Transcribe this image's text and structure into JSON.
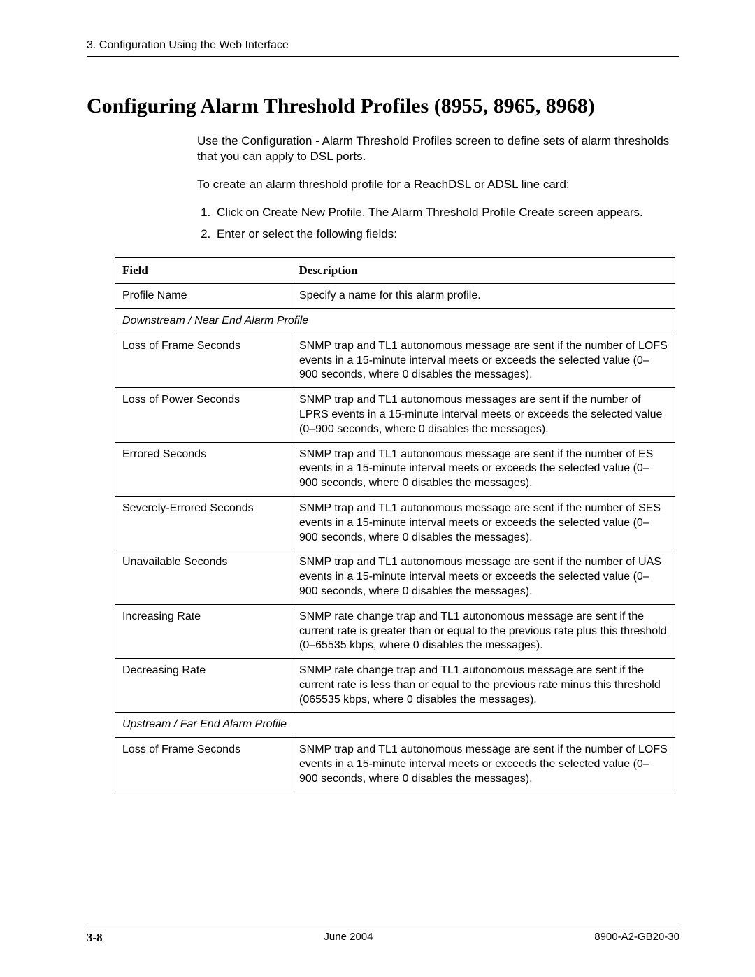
{
  "header": {
    "chapter": "3. Configuration Using the Web Interface"
  },
  "title": "Configuring Alarm Threshold Profiles (8955, 8965, 8968)",
  "intro": {
    "p1": "Use the Configuration - Alarm Threshold Profiles screen to define sets of alarm thresholds that you can apply to DSL ports.",
    "p2": "To create an alarm threshold profile for a ReachDSL or ADSL line card:",
    "step1": "Click on Create New Profile. The Alarm Threshold Profile Create screen appears.",
    "step2": "Enter or select the following fields:"
  },
  "table": {
    "col_field": "Field",
    "col_desc": "Description",
    "rows": [
      {
        "type": "row",
        "field": "Profile Name",
        "desc": "Specify a name for this alarm profile."
      },
      {
        "type": "section",
        "label": "Downstream / Near End Alarm Profile"
      },
      {
        "type": "row",
        "field": "Loss of Frame Seconds",
        "desc": "SNMP trap and TL1 autonomous message are sent if the number of LOFS events in a 15-minute interval meets or exceeds the selected value (0–900 seconds, where 0 disables the messages)."
      },
      {
        "type": "row",
        "field": "Loss of Power Seconds",
        "desc": "SNMP trap and TL1 autonomous messages are sent if the number of LPRS events in a 15-minute interval meets or exceeds the selected value (0–900 seconds, where 0 disables the messages)."
      },
      {
        "type": "row",
        "field": "Errored Seconds",
        "desc": "SNMP trap and TL1 autonomous message are sent if the number of ES events in a 15-minute interval meets or exceeds the selected value (0–900 seconds, where 0 disables the messages)."
      },
      {
        "type": "row",
        "field": "Severely-Errored Seconds",
        "desc": "SNMP trap and TL1 autonomous message are sent if the number of SES events in a 15-minute interval meets or exceeds the selected value (0–900 seconds, where 0 disables the messages)."
      },
      {
        "type": "row",
        "field": "Unavailable Seconds",
        "desc": "SNMP trap and TL1 autonomous message are sent if the number of UAS events in a 15-minute interval meets or exceeds the selected value (0–900 seconds, where 0 disables the messages)."
      },
      {
        "type": "row",
        "field": "Increasing Rate",
        "desc": "SNMP rate change trap and TL1 autonomous message are sent if the current rate is greater than or equal to the previous rate plus this threshold (0–65535 kbps, where 0 disables the messages)."
      },
      {
        "type": "row",
        "field": "Decreasing Rate",
        "desc": "SNMP rate change trap and TL1 autonomous message are sent if the current rate is less than or equal to the previous rate minus this threshold (065535 kbps, where 0 disables the messages)."
      },
      {
        "type": "section",
        "label": "Upstream / Far End Alarm Profile"
      },
      {
        "type": "row",
        "field": "Loss of Frame Seconds",
        "desc": "SNMP trap and TL1 autonomous message are sent if the number of LOFS events in a 15-minute interval meets or exceeds the selected value (0–900 seconds, where 0 disables the messages)."
      }
    ]
  },
  "footer": {
    "page": "3-8",
    "date": "June 2004",
    "docnum": "8900-A2-GB20-30"
  }
}
